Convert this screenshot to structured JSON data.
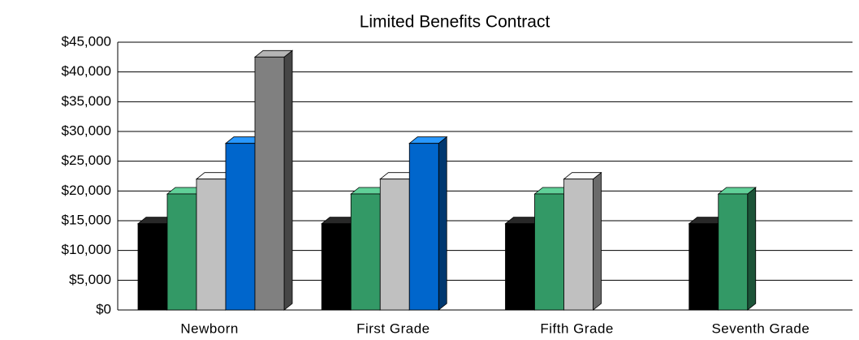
{
  "chart_data": {
    "type": "bar3d",
    "title": "Limited Benefits Contract",
    "categories": [
      "Newborn",
      "First Grade",
      "Fifth Grade",
      "Seventh Grade"
    ],
    "series": [
      {
        "color": "#000000",
        "values": [
          14500,
          14500,
          14500,
          14500
        ]
      },
      {
        "color": "#339966",
        "values": [
          19500,
          19500,
          19500,
          19500
        ]
      },
      {
        "color": "#c0c0c0",
        "values": [
          22000,
          22000,
          22000,
          null
        ]
      },
      {
        "color": "#0066cc",
        "values": [
          28000,
          28000,
          null,
          null
        ]
      },
      {
        "color": "#808080",
        "values": [
          42500,
          null,
          null,
          null
        ]
      }
    ],
    "ylim": [
      0,
      45000
    ],
    "yticks": [
      {
        "value": 0,
        "label": "$0"
      },
      {
        "value": 5000,
        "label": "$5,000"
      },
      {
        "value": 10000,
        "label": "$10,000"
      },
      {
        "value": 15000,
        "label": "$15,000"
      },
      {
        "value": 20000,
        "label": "$20,000"
      },
      {
        "value": 25000,
        "label": "$25,000"
      },
      {
        "value": 30000,
        "label": "$30,000"
      },
      {
        "value": 35000,
        "label": "$35,000"
      },
      {
        "value": 40000,
        "label": "$40,000"
      },
      {
        "value": 45000,
        "label": "$45,000"
      }
    ],
    "grid": true
  }
}
